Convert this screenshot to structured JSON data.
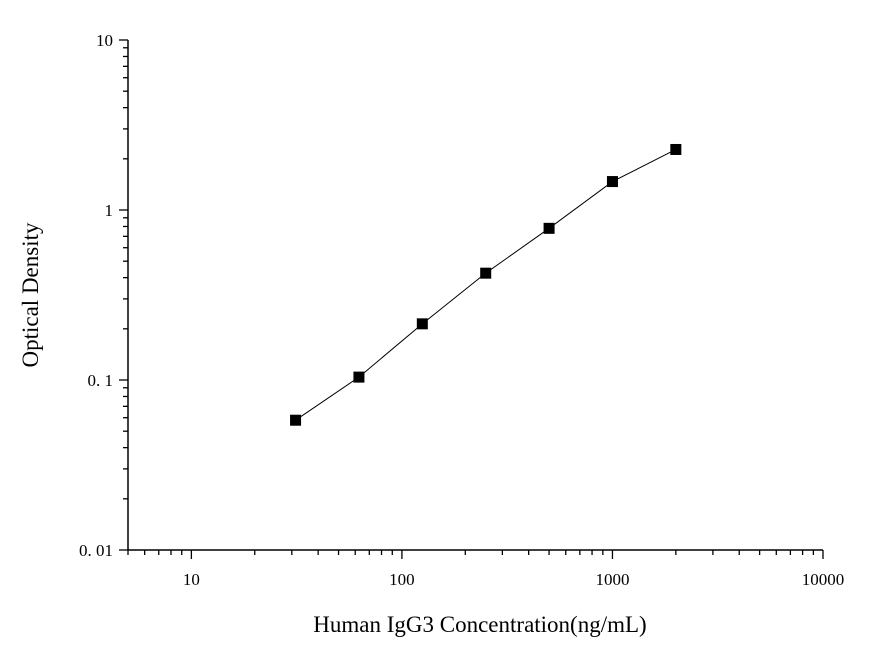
{
  "chart_data": {
    "type": "scatter",
    "xlabel": "Human IgG3 Concentration(ng/mL)",
    "ylabel": "Optical Density",
    "x_scale": "log",
    "y_scale": "log",
    "xlim": [
      5,
      10000
    ],
    "ylim": [
      0.01,
      10
    ],
    "x_tick_labels": [
      {
        "value": 10,
        "label": "10"
      },
      {
        "value": 100,
        "label": "100"
      },
      {
        "value": 1000,
        "label": "1000"
      },
      {
        "value": 10000,
        "label": "10000"
      }
    ],
    "y_tick_labels": [
      {
        "value": 0.01,
        "label": "0. 01"
      },
      {
        "value": 0.1,
        "label": "0. 1"
      },
      {
        "value": 1,
        "label": "1"
      },
      {
        "value": 10,
        "label": "10"
      }
    ],
    "grid": false,
    "legend": "none",
    "marker": "square",
    "connect_points": true,
    "series": [
      {
        "x": [
          31.25,
          62.5,
          125,
          250,
          500,
          1000,
          2000
        ],
        "y": [
          0.058,
          0.104,
          0.214,
          0.425,
          0.78,
          1.47,
          2.27
        ]
      }
    ],
    "colors": {
      "marker": "#000000",
      "line": "#000000",
      "axis": "#000000"
    }
  }
}
